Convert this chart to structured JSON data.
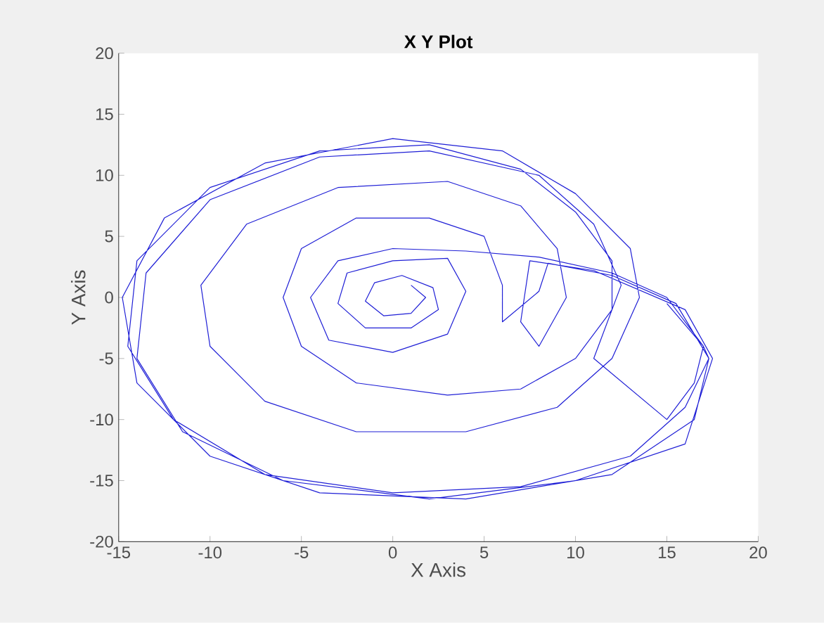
{
  "chart_data": {
    "type": "line",
    "title": "X Y Plot",
    "xlabel": "X Axis",
    "ylabel": "Y Axis",
    "x": [
      1,
      1.8,
      1,
      -0.5,
      -1.5,
      -1,
      0.5,
      2.2,
      2.5,
      1,
      -1.5,
      -3,
      -2.5,
      0,
      3,
      4,
      3,
      0,
      -3.5,
      -4.5,
      -3,
      0,
      4,
      8,
      12,
      15,
      17,
      17.3,
      16,
      13,
      7,
      0,
      -7,
      -12,
      -14.5,
      -14,
      -10,
      -4,
      2,
      7,
      10,
      12,
      12,
      10,
      7,
      3,
      -2,
      -5,
      -6,
      -5,
      -2,
      2,
      5,
      6,
      6,
      8,
      8.5,
      12,
      15.5,
      17.3,
      16.5,
      12,
      4,
      -4,
      -10,
      -14,
      -14.8,
      -12.5,
      -7,
      0,
      6,
      10,
      13,
      13.5,
      12,
      9,
      4,
      -2,
      -7,
      -10,
      -10.5,
      -8,
      -3,
      3,
      7,
      9,
      9.5,
      8,
      7,
      7.5,
      11,
      16,
      17.5,
      16,
      10,
      2,
      -6,
      -11.5,
      -14,
      -13.5,
      -10,
      -4,
      2,
      8,
      11,
      12.5,
      11,
      15,
      16.5,
      17,
      15
    ],
    "values": [
      1,
      0,
      -1.3,
      -1.5,
      -0.3,
      1.2,
      1.8,
      0.8,
      -1,
      -2.5,
      -2.5,
      -0.5,
      2,
      3,
      3.2,
      0.5,
      -3,
      -4.5,
      -3.5,
      0,
      3,
      4,
      3.8,
      3.3,
      2,
      0,
      -4,
      -5,
      -9,
      -13,
      -15.5,
      -16,
      -14.5,
      -10,
      -4,
      3,
      9,
      12,
      12.5,
      10.5,
      7,
      3,
      -1,
      -5,
      -7.5,
      -8,
      -7,
      -4,
      0,
      4,
      6.5,
      6.5,
      5,
      1,
      -2,
      0.5,
      2.8,
      1.8,
      -0.5,
      -5,
      -10,
      -14.5,
      -16.5,
      -16,
      -13,
      -7,
      0,
      6.5,
      11,
      13,
      12,
      8.5,
      4,
      0,
      -5,
      -9,
      -11,
      -11,
      -8.5,
      -4,
      1,
      6,
      9,
      9.5,
      7.5,
      4,
      0,
      -4,
      -2,
      3,
      2.2,
      -1,
      -5,
      -12,
      -15,
      -16.5,
      -15,
      -11,
      -5,
      2,
      8,
      11.5,
      12,
      10,
      6,
      1,
      -5,
      -10,
      -7,
      -4,
      -0.5
    ],
    "color": "#1f1fd6",
    "xlim": [
      -15,
      20
    ],
    "ylim": [
      -20,
      20
    ],
    "xticks": [
      -15,
      -10,
      -5,
      0,
      5,
      10,
      15,
      20
    ],
    "yticks": [
      -20,
      -15,
      -10,
      -5,
      0,
      5,
      10,
      15,
      20
    ]
  }
}
